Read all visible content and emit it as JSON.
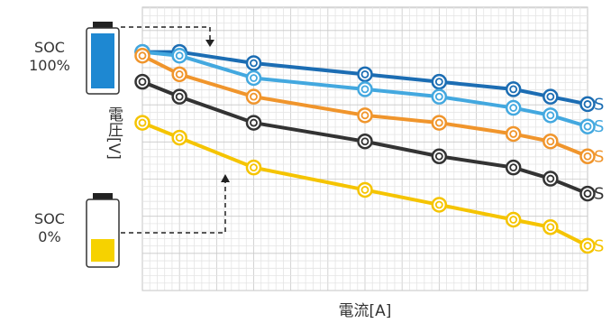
{
  "chart_data": {
    "type": "line",
    "xlabel": "電流[A]",
    "ylabel": "電圧[V]",
    "annotations": [
      [
        "SOC",
        "100%"
      ],
      [
        "SOC",
        "0%"
      ]
    ],
    "x": [
      0,
      1,
      3,
      6,
      8,
      10,
      11,
      12
    ],
    "xlim": [
      0,
      12
    ],
    "ylim": [
      0,
      7.6
    ],
    "grid": true,
    "series": [
      {
        "name": "S",
        "color": "#1c6db3",
        "values": [
          6.4,
          6.4,
          6.1,
          5.8,
          5.6,
          5.4,
          5.2,
          5.0
        ]
      },
      {
        "name": "S",
        "color": "#43a8df",
        "values": [
          6.4,
          6.3,
          5.7,
          5.4,
          5.2,
          4.9,
          4.7,
          4.4
        ]
      },
      {
        "name": "S",
        "color": "#f0952c",
        "values": [
          6.3,
          5.8,
          5.2,
          4.7,
          4.5,
          4.2,
          4.0,
          3.6
        ]
      },
      {
        "name": "S",
        "color": "#333333",
        "values": [
          5.6,
          5.2,
          4.5,
          4.0,
          3.6,
          3.3,
          3.0,
          2.6
        ]
      },
      {
        "name": "S",
        "color": "#f5c400",
        "values": [
          4.5,
          4.1,
          3.3,
          2.7,
          2.3,
          1.9,
          1.7,
          1.2
        ]
      }
    ]
  }
}
